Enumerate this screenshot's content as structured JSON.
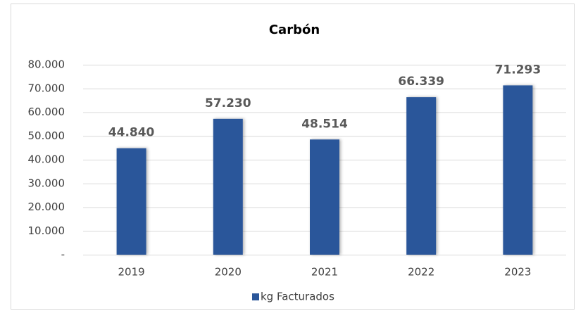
{
  "chart_data": {
    "type": "bar",
    "title": "Carbón",
    "categories": [
      "2019",
      "2020",
      "2021",
      "2022",
      "2023"
    ],
    "series": [
      {
        "name": "kg Facturados",
        "color": "#2b579a",
        "values": [
          44840,
          57230,
          48514,
          66339,
          71293
        ],
        "value_labels": [
          "44.840",
          "57.230",
          "48.514",
          "66.339",
          "71.293"
        ]
      }
    ],
    "ylim": [
      0,
      80000
    ],
    "yticks": [
      {
        "value": 0,
        "label": "-"
      },
      {
        "value": 10000,
        "label": "10.000"
      },
      {
        "value": 20000,
        "label": "20.000"
      },
      {
        "value": 30000,
        "label": "30.000"
      },
      {
        "value": 40000,
        "label": "40.000"
      },
      {
        "value": 50000,
        "label": "50.000"
      },
      {
        "value": 60000,
        "label": "60.000"
      },
      {
        "value": 70000,
        "label": "70.000"
      },
      {
        "value": 80000,
        "label": "80.000"
      }
    ],
    "grid": true,
    "legend": "bottom"
  }
}
